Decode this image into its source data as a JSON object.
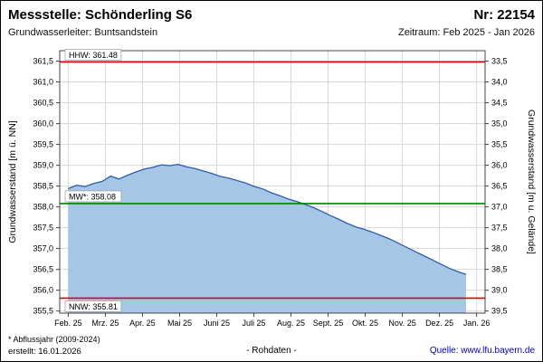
{
  "header": {
    "title": "Messstelle: Schönderling S6",
    "number": "Nr: 22154",
    "aquifer": "Grundwasserleiter: Buntsandstein",
    "period": "Zeitraum: Feb 2025 - Jan 2026"
  },
  "chart_data": {
    "type": "area",
    "ylabel_left": "Grundwasserstand [m ü. NN]",
    "ylabel_right": "Grundwasserstand [m u. Gelände]",
    "x_tick_labels": [
      "Feb. 25",
      "Mrz. 25",
      "Apr. 25",
      "Mai 25",
      "Juni 25",
      "Juli 25",
      "Aug. 25",
      "Sept. 25",
      "Okt. 25",
      "Nov. 25",
      "Dez. 25",
      "Jan. 26"
    ],
    "yticks_left": {
      "min": 355.5,
      "max": 361.5,
      "step": 0.5
    },
    "yticks_right": {
      "min": 33.5,
      "max": 39.5,
      "step": 0.5
    },
    "grid": true,
    "line_color": "#2a5db0",
    "fill_color": "#a6c6e6",
    "series": {
      "name": "Grundwasserstand Rohdaten",
      "values": [
        358.44,
        358.52,
        358.49,
        358.56,
        358.61,
        358.74,
        358.67,
        358.76,
        358.84,
        358.91,
        358.95,
        359.01,
        358.99,
        359.02,
        358.96,
        358.92,
        358.86,
        358.8,
        358.73,
        358.69,
        358.63,
        358.57,
        358.49,
        358.43,
        358.34,
        358.27,
        358.19,
        358.13,
        358.06,
        357.98,
        357.89,
        357.79,
        357.7,
        357.6,
        357.52,
        357.46,
        357.39,
        357.31,
        357.23,
        357.13,
        357.03,
        356.93,
        356.83,
        356.73,
        356.63,
        356.53,
        356.45,
        356.38
      ]
    },
    "reference_lines": [
      {
        "name": "HHW",
        "label": "HHW: 361.48",
        "value": 361.48,
        "color": "#dd0000",
        "label_pos": "above"
      },
      {
        "name": "MW",
        "label": "MW*: 358.08",
        "value": 358.08,
        "color": "#008000",
        "label_pos": "above"
      },
      {
        "name": "NNW",
        "label": "NNW: 355.81",
        "value": 355.81,
        "color": "#dd0000",
        "label_pos": "below"
      }
    ]
  },
  "footer": {
    "note": "* Abflussjahr (2009-2024)",
    "created": "erstellt: 16.01.2026",
    "center": "- Rohdaten -",
    "source": "Quelle: www.lfu.bayern.de"
  }
}
